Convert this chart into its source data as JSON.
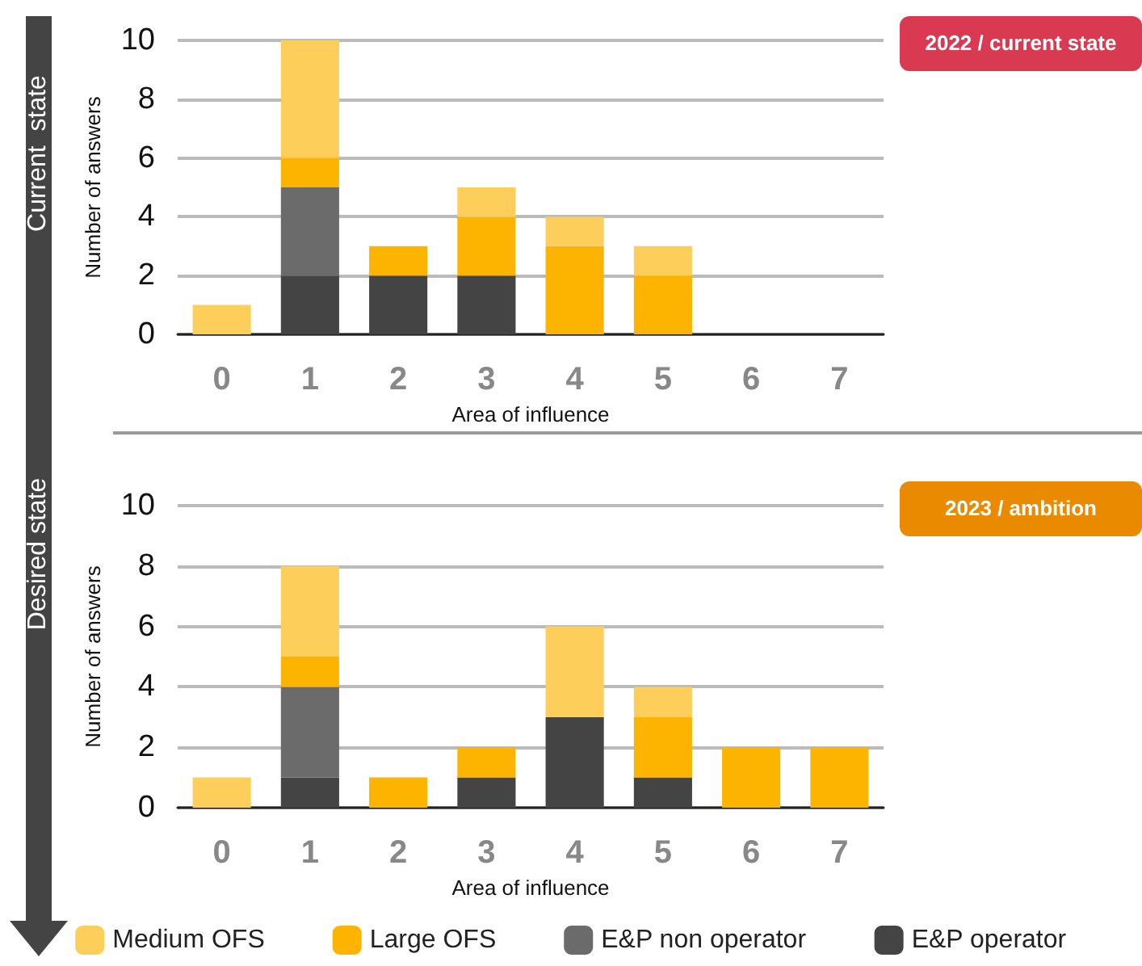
{
  "chart_data": [
    {
      "type": "bar",
      "stacked": true,
      "xlabel": "Area of influence",
      "ylabel": "Number of answers",
      "categories": [
        "0",
        "1",
        "2",
        "3",
        "4",
        "5",
        "6",
        "7"
      ],
      "ylim": [
        0,
        10
      ],
      "yticks": [
        0,
        2,
        4,
        6,
        8,
        10
      ],
      "grid": "y",
      "annotations": [
        "Current  state",
        "2022 / current state"
      ],
      "series": [
        {
          "color": "#444444",
          "values": [
            0,
            2,
            2,
            2,
            0,
            0,
            0,
            0
          ]
        },
        {
          "color": "#6b6b6b",
          "values": [
            0,
            3,
            0,
            0,
            0,
            0,
            0,
            0
          ]
        },
        {
          "color": "#fdb400",
          "values": [
            0,
            1,
            1,
            2,
            3,
            2,
            0,
            0
          ]
        },
        {
          "color": "#fdcf5a",
          "values": [
            1,
            4,
            0,
            1,
            1,
            1,
            0,
            0
          ]
        }
      ]
    },
    {
      "type": "bar",
      "stacked": true,
      "xlabel": "Area of influence",
      "ylabel": "Number of answers",
      "categories": [
        "0",
        "1",
        "2",
        "3",
        "4",
        "5",
        "6",
        "7"
      ],
      "ylim": [
        0,
        10
      ],
      "yticks": [
        0,
        2,
        4,
        6,
        8,
        10
      ],
      "grid": "y",
      "legend": "bottom",
      "annotations": [
        "Desired state",
        "2023 / ambition"
      ],
      "series": [
        {
          "name": "E&P operator",
          "color": "#444444",
          "values": [
            0,
            1,
            0,
            1,
            3,
            1,
            0,
            0
          ]
        },
        {
          "name": "E&P non operator",
          "color": "#6b6b6b",
          "values": [
            0,
            3,
            0,
            0,
            0,
            0,
            0,
            0
          ]
        },
        {
          "name": "Large OFS",
          "color": "#fdb400",
          "values": [
            0,
            1,
            1,
            1,
            0,
            2,
            2,
            2
          ]
        },
        {
          "name": "Medium OFS",
          "color": "#fdcf5a",
          "values": [
            1,
            3,
            0,
            0,
            3,
            1,
            0,
            0
          ]
        }
      ]
    }
  ]
}
